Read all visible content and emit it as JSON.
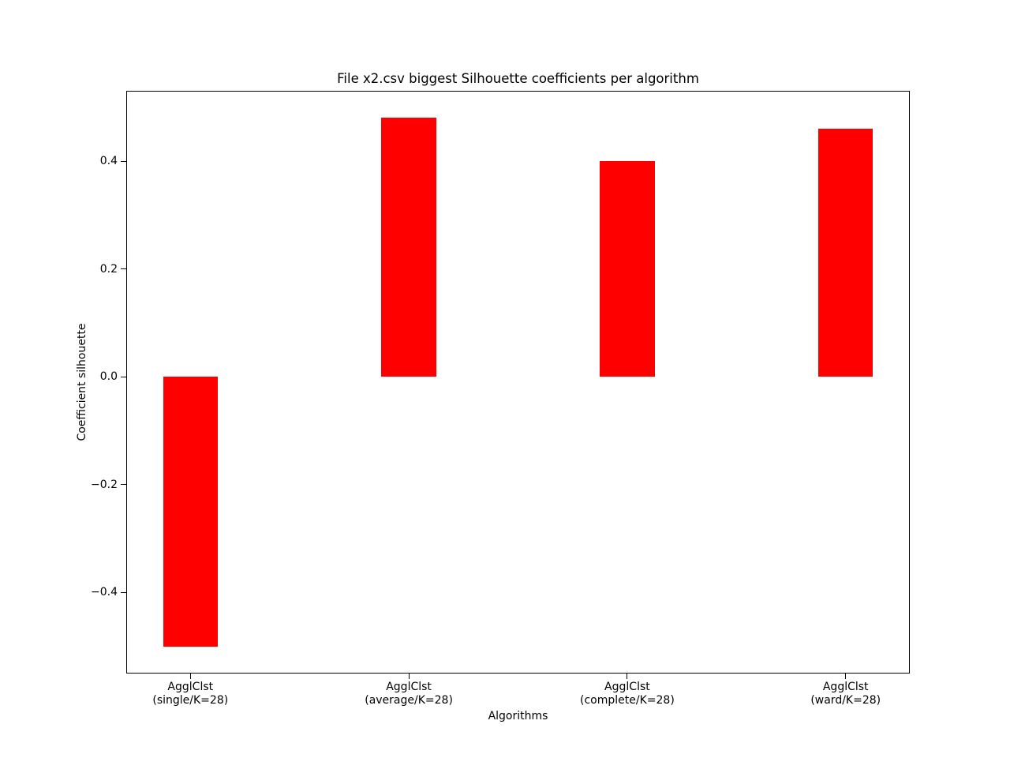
{
  "chart_data": {
    "type": "bar",
    "title": "File x2.csv biggest Silhouette coefficients per algorithm",
    "xlabel": "Algorithms",
    "ylabel": "Coefficient silhouette",
    "categories": [
      {
        "line1": "AgglClst",
        "line2": "(single/K=28)"
      },
      {
        "line1": "AgglClst",
        "line2": "(average/K=28)"
      },
      {
        "line1": "AgglClst",
        "line2": "(complete/K=28)"
      },
      {
        "line1": "AgglClst",
        "line2": "(ward/K=28)"
      }
    ],
    "x": [
      0,
      1,
      2,
      3
    ],
    "values": [
      -0.5,
      0.48,
      0.4,
      0.46
    ],
    "bar_color": "#ff0000",
    "bar_width": 0.25,
    "xlim": [
      -0.29,
      3.29
    ],
    "ylim": [
      -0.549,
      0.529
    ],
    "yticks": [
      0.4,
      0.2,
      0.0,
      -0.2,
      -0.4
    ],
    "ytick_labels": [
      "0.4",
      "0.2",
      "0.0",
      "−0.2",
      "−0.4"
    ],
    "grid": false,
    "legend": "none",
    "text_color": "#000000",
    "background": "#ffffff"
  }
}
